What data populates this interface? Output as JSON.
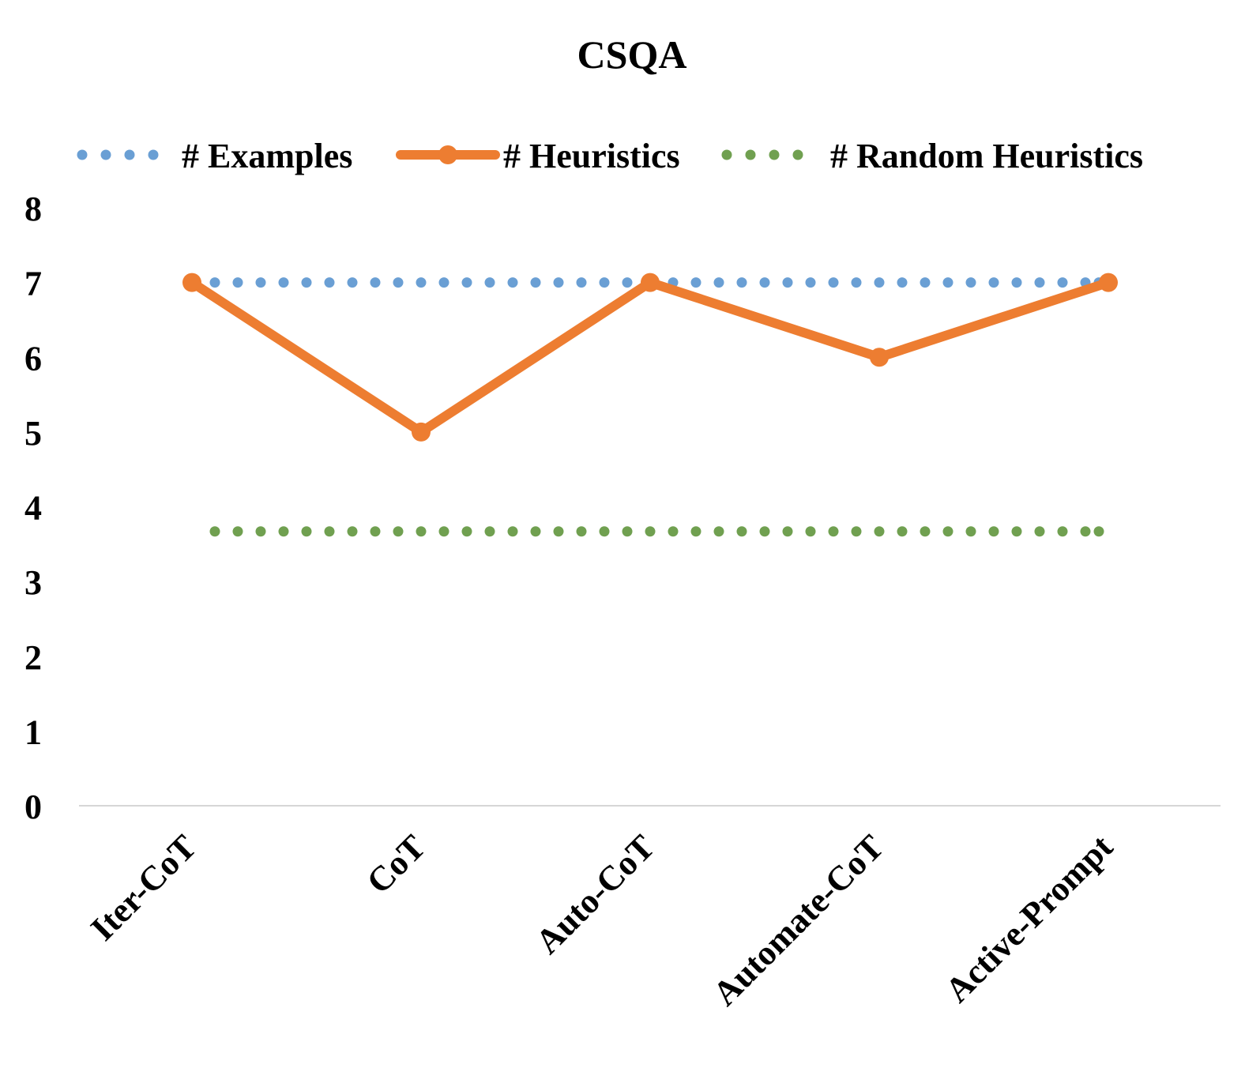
{
  "chart_data": {
    "type": "line",
    "title": "CSQA",
    "categories": [
      "Iter-CoT",
      "CoT",
      "Auto-CoT",
      "Automate-CoT",
      "Active-Prompt"
    ],
    "ylim": [
      0,
      8
    ],
    "yticks": [
      0,
      1,
      2,
      3,
      4,
      5,
      6,
      7,
      8
    ],
    "grid": false,
    "legend_position": "top",
    "series": [
      {
        "name": "# Examples",
        "values": [
          7,
          7,
          7,
          7,
          7
        ],
        "style": "dotted",
        "markers": false,
        "color": "#6a9fd4"
      },
      {
        "name": "# Heuristics",
        "values": [
          7,
          5,
          7,
          6,
          7
        ],
        "style": "solid",
        "markers": true,
        "color": "#ed7d31"
      },
      {
        "name": "# Random Heuristics",
        "values": [
          3.67,
          3.67,
          3.67,
          3.67,
          3.67
        ],
        "style": "dotted",
        "markers": false,
        "color": "#70a050"
      }
    ]
  }
}
